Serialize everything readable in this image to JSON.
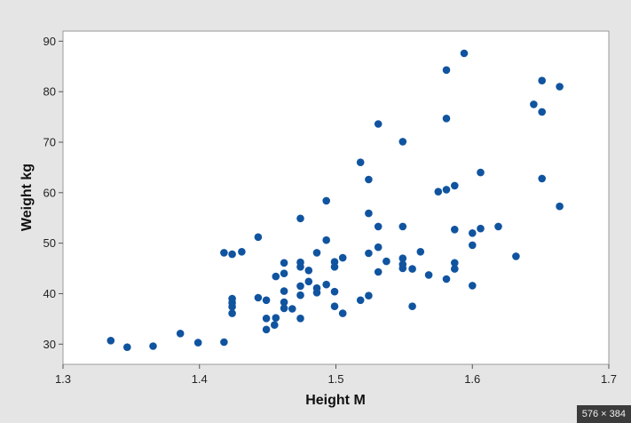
{
  "chart_data": {
    "type": "scatter",
    "xlabel": "Height M",
    "ylabel": "Weight kg",
    "xlim": [
      1.3,
      1.7
    ],
    "ylim": [
      26,
      92
    ],
    "xticks": [
      1.3,
      1.4,
      1.5,
      1.6,
      1.7
    ],
    "xtick_labels": [
      "1.3",
      "1.4",
      "1.5",
      "1.6",
      "1.7"
    ],
    "yticks": [
      30,
      40,
      50,
      60,
      70,
      80,
      90
    ],
    "ytick_labels": [
      "30",
      "40",
      "50",
      "60",
      "70",
      "80",
      "90"
    ],
    "grid": false,
    "marker_color": "#1054a0",
    "series": [
      {
        "points": [
          [
            1.335,
            30.7
          ],
          [
            1.347,
            29.4
          ],
          [
            1.366,
            29.6
          ],
          [
            1.386,
            32.1
          ],
          [
            1.399,
            30.3
          ],
          [
            1.418,
            30.4
          ],
          [
            1.418,
            48.1
          ],
          [
            1.424,
            47.8
          ],
          [
            1.431,
            48.3
          ],
          [
            1.424,
            39.0
          ],
          [
            1.424,
            38.2
          ],
          [
            1.424,
            37.4
          ],
          [
            1.424,
            36.1
          ],
          [
            1.443,
            51.2
          ],
          [
            1.443,
            39.2
          ],
          [
            1.449,
            38.7
          ],
          [
            1.449,
            35.1
          ],
          [
            1.449,
            32.9
          ],
          [
            1.455,
            33.8
          ],
          [
            1.456,
            35.2
          ],
          [
            1.456,
            43.4
          ],
          [
            1.462,
            46.1
          ],
          [
            1.462,
            44.0
          ],
          [
            1.462,
            40.5
          ],
          [
            1.462,
            38.3
          ],
          [
            1.462,
            37.1
          ],
          [
            1.468,
            37.0
          ],
          [
            1.474,
            35.1
          ],
          [
            1.474,
            39.7
          ],
          [
            1.474,
            41.5
          ],
          [
            1.474,
            45.3
          ],
          [
            1.474,
            46.2
          ],
          [
            1.474,
            54.9
          ],
          [
            1.48,
            44.6
          ],
          [
            1.48,
            42.4
          ],
          [
            1.486,
            48.1
          ],
          [
            1.486,
            41.1
          ],
          [
            1.486,
            40.2
          ],
          [
            1.493,
            41.8
          ],
          [
            1.493,
            50.6
          ],
          [
            1.493,
            58.4
          ],
          [
            1.499,
            46.3
          ],
          [
            1.499,
            45.3
          ],
          [
            1.499,
            40.4
          ],
          [
            1.499,
            37.5
          ],
          [
            1.505,
            47.1
          ],
          [
            1.505,
            36.1
          ],
          [
            1.518,
            38.7
          ],
          [
            1.518,
            66.0
          ],
          [
            1.524,
            62.6
          ],
          [
            1.524,
            55.9
          ],
          [
            1.524,
            48.0
          ],
          [
            1.524,
            39.6
          ],
          [
            1.531,
            73.6
          ],
          [
            1.531,
            53.3
          ],
          [
            1.531,
            49.2
          ],
          [
            1.531,
            44.3
          ],
          [
            1.537,
            46.4
          ],
          [
            1.549,
            70.1
          ],
          [
            1.549,
            53.3
          ],
          [
            1.549,
            47.0
          ],
          [
            1.549,
            45.8
          ],
          [
            1.549,
            45.0
          ],
          [
            1.556,
            44.9
          ],
          [
            1.556,
            37.5
          ],
          [
            1.562,
            48.3
          ],
          [
            1.568,
            43.7
          ],
          [
            1.575,
            60.2
          ],
          [
            1.581,
            84.3
          ],
          [
            1.581,
            74.7
          ],
          [
            1.581,
            60.6
          ],
          [
            1.581,
            42.9
          ],
          [
            1.587,
            61.4
          ],
          [
            1.587,
            52.7
          ],
          [
            1.587,
            46.1
          ],
          [
            1.587,
            44.9
          ],
          [
            1.594,
            87.6
          ],
          [
            1.6,
            52.0
          ],
          [
            1.6,
            49.6
          ],
          [
            1.6,
            41.6
          ],
          [
            1.606,
            64.0
          ],
          [
            1.606,
            52.9
          ],
          [
            1.619,
            53.3
          ],
          [
            1.632,
            47.4
          ],
          [
            1.645,
            77.5
          ],
          [
            1.651,
            82.2
          ],
          [
            1.651,
            76.0
          ],
          [
            1.651,
            62.8
          ],
          [
            1.664,
            81.0
          ],
          [
            1.664,
            57.3
          ]
        ]
      }
    ]
  },
  "badge": {
    "text": "576 × 384"
  }
}
